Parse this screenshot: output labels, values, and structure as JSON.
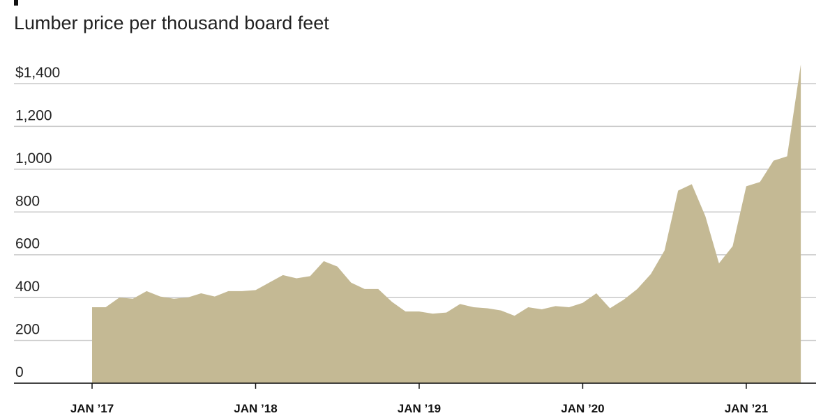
{
  "chart_data": {
    "type": "area",
    "title": "Lumber price per thousand board feet",
    "color": "#c4b994",
    "x": [
      "2017-01",
      "2017-02",
      "2017-03",
      "2017-04",
      "2017-05",
      "2017-06",
      "2017-07",
      "2017-08",
      "2017-09",
      "2017-10",
      "2017-11",
      "2017-12",
      "2018-01",
      "2018-02",
      "2018-03",
      "2018-04",
      "2018-05",
      "2018-06",
      "2018-07",
      "2018-08",
      "2018-09",
      "2018-10",
      "2018-11",
      "2018-12",
      "2019-01",
      "2019-02",
      "2019-03",
      "2019-04",
      "2019-05",
      "2019-06",
      "2019-07",
      "2019-08",
      "2019-09",
      "2019-10",
      "2019-11",
      "2019-12",
      "2020-01",
      "2020-02",
      "2020-03",
      "2020-04",
      "2020-05",
      "2020-06",
      "2020-07",
      "2020-08",
      "2020-09",
      "2020-10",
      "2020-11",
      "2020-12",
      "2021-01",
      "2021-02",
      "2021-03",
      "2021-04",
      "2021-05"
    ],
    "values": [
      355,
      355,
      400,
      395,
      430,
      405,
      395,
      400,
      420,
      405,
      430,
      430,
      435,
      470,
      505,
      490,
      500,
      570,
      545,
      470,
      440,
      440,
      380,
      335,
      335,
      325,
      330,
      370,
      355,
      350,
      340,
      315,
      355,
      345,
      360,
      355,
      375,
      420,
      350,
      390,
      440,
      510,
      620,
      900,
      930,
      780,
      560,
      640,
      920,
      940,
      1040,
      1060,
      1490
    ],
    "ylim": [
      0,
      1400
    ],
    "yticks": [
      0,
      200,
      400,
      600,
      800,
      {
        "value": 1000,
        "label": "1,000"
      },
      {
        "value": 1200,
        "label": "1,200"
      },
      {
        "value": 1400,
        "label": "$1,400"
      }
    ],
    "xticks": [
      {
        "value": "2017-01",
        "label": "JAN ’17"
      },
      {
        "value": "2018-01",
        "label": "JAN ’18"
      },
      {
        "value": "2019-01",
        "label": "JAN ’19"
      },
      {
        "value": "2020-01",
        "label": "JAN ’20"
      },
      {
        "value": "2021-01",
        "label": "JAN ’21"
      }
    ],
    "grid": true
  }
}
